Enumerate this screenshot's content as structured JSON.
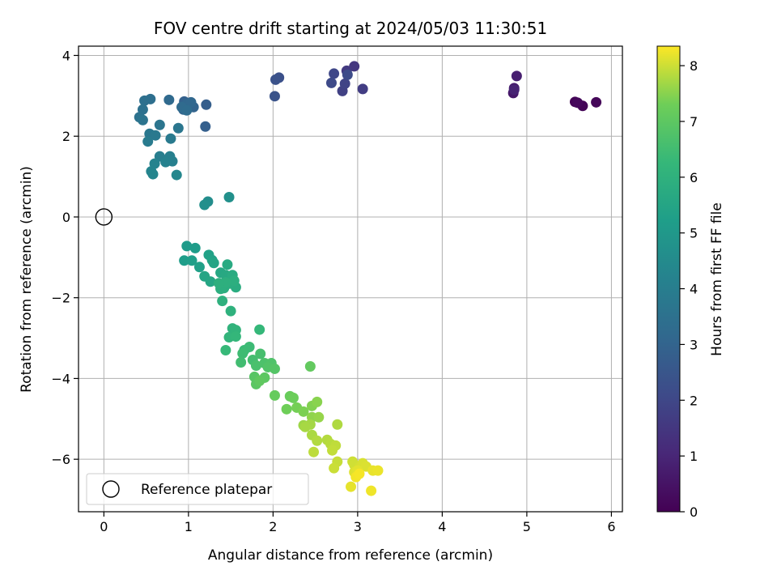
{
  "chart_data": {
    "type": "scatter",
    "title": "FOV centre drift starting at 2024/05/03 11:30:51",
    "xlabel": "Angular distance from reference (arcmin)",
    "ylabel": "Rotation from reference (arcmin)",
    "xlim": [
      -0.3,
      6.13
    ],
    "ylim": [
      -7.3,
      4.23
    ],
    "xticks": [
      0,
      1,
      2,
      3,
      4,
      5,
      6
    ],
    "yticks": [
      -6,
      -4,
      -2,
      0,
      2,
      4
    ],
    "grid": true,
    "colorbar": {
      "label": "Hours from first FF file",
      "range": [
        0,
        8.35
      ],
      "ticks": [
        0,
        1,
        2,
        3,
        4,
        5,
        6,
        7,
        8
      ],
      "colormap": "viridis"
    },
    "reference": {
      "x": 0,
      "y": 0,
      "label": "Reference platepar"
    },
    "legend_position": "lower-left",
    "series": [
      {
        "points": [
          [
            5.57,
            2.85,
            0.05
          ],
          [
            5.66,
            2.75,
            0.1
          ],
          [
            5.82,
            2.84,
            0.15
          ],
          [
            5.6,
            2.83,
            0.2
          ],
          [
            4.84,
            3.07,
            0.6
          ],
          [
            4.85,
            3.19,
            0.7
          ],
          [
            4.88,
            3.49,
            0.8
          ],
          [
            4.85,
            3.15,
            0.9
          ],
          [
            2.96,
            3.73,
            1.5
          ],
          [
            2.87,
            3.62,
            1.6
          ],
          [
            3.06,
            3.17,
            1.7
          ],
          [
            2.82,
            3.12,
            1.8
          ],
          [
            2.85,
            3.3,
            1.9
          ],
          [
            2.72,
            3.55,
            2.0
          ],
          [
            2.69,
            3.32,
            2.1
          ],
          [
            2.88,
            3.52,
            2.15
          ],
          [
            2.07,
            3.45,
            2.3
          ],
          [
            2.03,
            3.4,
            2.35
          ],
          [
            2.02,
            2.99,
            2.4
          ],
          [
            1.21,
            2.78,
            2.8
          ],
          [
            1.2,
            2.24,
            2.85
          ],
          [
            0.95,
            2.86,
            2.9
          ],
          [
            1.02,
            2.76,
            2.95
          ],
          [
            1.06,
            2.72,
            3.0
          ],
          [
            0.94,
            2.66,
            3.05
          ],
          [
            0.98,
            2.8,
            3.1
          ],
          [
            1.03,
            2.84,
            3.15
          ],
          [
            0.77,
            2.9,
            3.2
          ],
          [
            0.92,
            2.72,
            3.25
          ],
          [
            0.98,
            2.64,
            3.3
          ],
          [
            0.55,
            2.92,
            3.4
          ],
          [
            0.48,
            2.88,
            3.45
          ],
          [
            0.46,
            2.66,
            3.5
          ],
          [
            0.42,
            2.47,
            3.55
          ],
          [
            0.46,
            2.4,
            3.6
          ],
          [
            0.66,
            2.28,
            3.65
          ],
          [
            0.88,
            2.2,
            3.7
          ],
          [
            0.54,
            2.06,
            3.75
          ],
          [
            0.61,
            2.02,
            3.8
          ],
          [
            0.79,
            1.94,
            3.85
          ],
          [
            0.52,
            1.87,
            3.9
          ],
          [
            0.66,
            1.5,
            4.0
          ],
          [
            0.78,
            1.5,
            4.05
          ],
          [
            0.81,
            1.38,
            4.1
          ],
          [
            0.73,
            1.36,
            4.15
          ],
          [
            0.6,
            1.32,
            4.2
          ],
          [
            0.56,
            1.13,
            4.25
          ],
          [
            0.58,
            1.06,
            4.3
          ],
          [
            0.86,
            1.04,
            4.35
          ],
          [
            1.23,
            0.38,
            4.6
          ],
          [
            1.19,
            0.3,
            4.65
          ],
          [
            1.48,
            0.49,
            4.7
          ],
          [
            0.98,
            -0.72,
            5.1
          ],
          [
            1.08,
            -0.77,
            5.15
          ],
          [
            0.95,
            -1.08,
            5.2
          ],
          [
            1.04,
            -1.08,
            5.25
          ],
          [
            1.13,
            -1.24,
            5.3
          ],
          [
            1.24,
            -0.94,
            5.35
          ],
          [
            1.28,
            -1.07,
            5.4
          ],
          [
            1.3,
            -1.14,
            5.45
          ],
          [
            1.19,
            -1.47,
            5.5
          ],
          [
            1.26,
            -1.6,
            5.55
          ],
          [
            1.38,
            -1.38,
            5.6
          ],
          [
            1.44,
            -1.44,
            5.65
          ],
          [
            1.46,
            -1.18,
            5.7
          ],
          [
            1.52,
            -1.44,
            5.75
          ],
          [
            1.56,
            -1.74,
            5.8
          ],
          [
            1.48,
            -1.65,
            5.82
          ],
          [
            1.42,
            -1.76,
            5.85
          ],
          [
            1.38,
            -1.78,
            5.88
          ],
          [
            1.54,
            -1.58,
            5.9
          ],
          [
            1.44,
            -1.62,
            5.92
          ],
          [
            1.36,
            -1.64,
            5.94
          ],
          [
            1.4,
            -2.08,
            5.96
          ],
          [
            1.5,
            -2.33,
            6.0
          ],
          [
            1.52,
            -2.76,
            6.05
          ],
          [
            1.56,
            -2.8,
            6.1
          ],
          [
            1.48,
            -2.98,
            6.15
          ],
          [
            1.56,
            -2.96,
            6.2
          ],
          [
            1.84,
            -2.79,
            6.25
          ],
          [
            1.44,
            -3.3,
            6.3
          ],
          [
            1.66,
            -3.3,
            6.35
          ],
          [
            1.72,
            -3.22,
            6.4
          ],
          [
            1.64,
            -3.38,
            6.45
          ],
          [
            1.62,
            -3.6,
            6.5
          ],
          [
            1.76,
            -3.54,
            6.55
          ],
          [
            1.85,
            -3.39,
            6.6
          ],
          [
            1.8,
            -3.68,
            6.65
          ],
          [
            1.9,
            -3.62,
            6.7
          ],
          [
            1.98,
            -3.62,
            6.75
          ],
          [
            1.94,
            -3.72,
            6.8
          ],
          [
            2.02,
            -3.76,
            6.85
          ],
          [
            1.78,
            -3.96,
            6.9
          ],
          [
            1.8,
            -4.14,
            6.95
          ],
          [
            1.9,
            -3.98,
            7.0
          ],
          [
            1.84,
            -4.06,
            7.05
          ],
          [
            2.44,
            -3.7,
            7.1
          ],
          [
            2.02,
            -4.42,
            7.15
          ],
          [
            2.2,
            -4.44,
            7.2
          ],
          [
            2.24,
            -4.48,
            7.25
          ],
          [
            2.16,
            -4.76,
            7.3
          ],
          [
            2.28,
            -4.72,
            7.35
          ],
          [
            2.36,
            -4.82,
            7.4
          ],
          [
            2.46,
            -4.68,
            7.45
          ],
          [
            2.52,
            -4.58,
            7.5
          ],
          [
            2.46,
            -4.96,
            7.55
          ],
          [
            2.54,
            -4.96,
            7.6
          ],
          [
            2.36,
            -5.16,
            7.65
          ],
          [
            2.44,
            -5.14,
            7.7
          ],
          [
            2.38,
            -5.2,
            7.72
          ],
          [
            2.46,
            -5.4,
            7.75
          ],
          [
            2.76,
            -5.14,
            7.78
          ],
          [
            2.52,
            -5.54,
            7.8
          ],
          [
            2.64,
            -5.52,
            7.82
          ],
          [
            2.68,
            -5.62,
            7.85
          ],
          [
            2.48,
            -5.82,
            7.88
          ],
          [
            2.74,
            -5.66,
            7.9
          ],
          [
            2.7,
            -5.78,
            7.92
          ],
          [
            2.76,
            -6.06,
            7.95
          ],
          [
            2.72,
            -6.22,
            7.98
          ],
          [
            2.94,
            -6.06,
            8.0
          ],
          [
            2.96,
            -6.14,
            8.02
          ],
          [
            3.02,
            -6.2,
            8.05
          ],
          [
            3.06,
            -6.1,
            8.08
          ],
          [
            3.1,
            -6.18,
            8.1
          ],
          [
            2.96,
            -6.32,
            8.12
          ],
          [
            3.0,
            -6.28,
            8.15
          ],
          [
            2.92,
            -6.68,
            8.18
          ],
          [
            3.18,
            -6.28,
            8.2
          ],
          [
            3.24,
            -6.28,
            8.22
          ],
          [
            3.16,
            -6.78,
            8.25
          ],
          [
            2.98,
            -6.44,
            8.28
          ],
          [
            3.02,
            -6.36,
            8.3
          ]
        ]
      }
    ]
  }
}
